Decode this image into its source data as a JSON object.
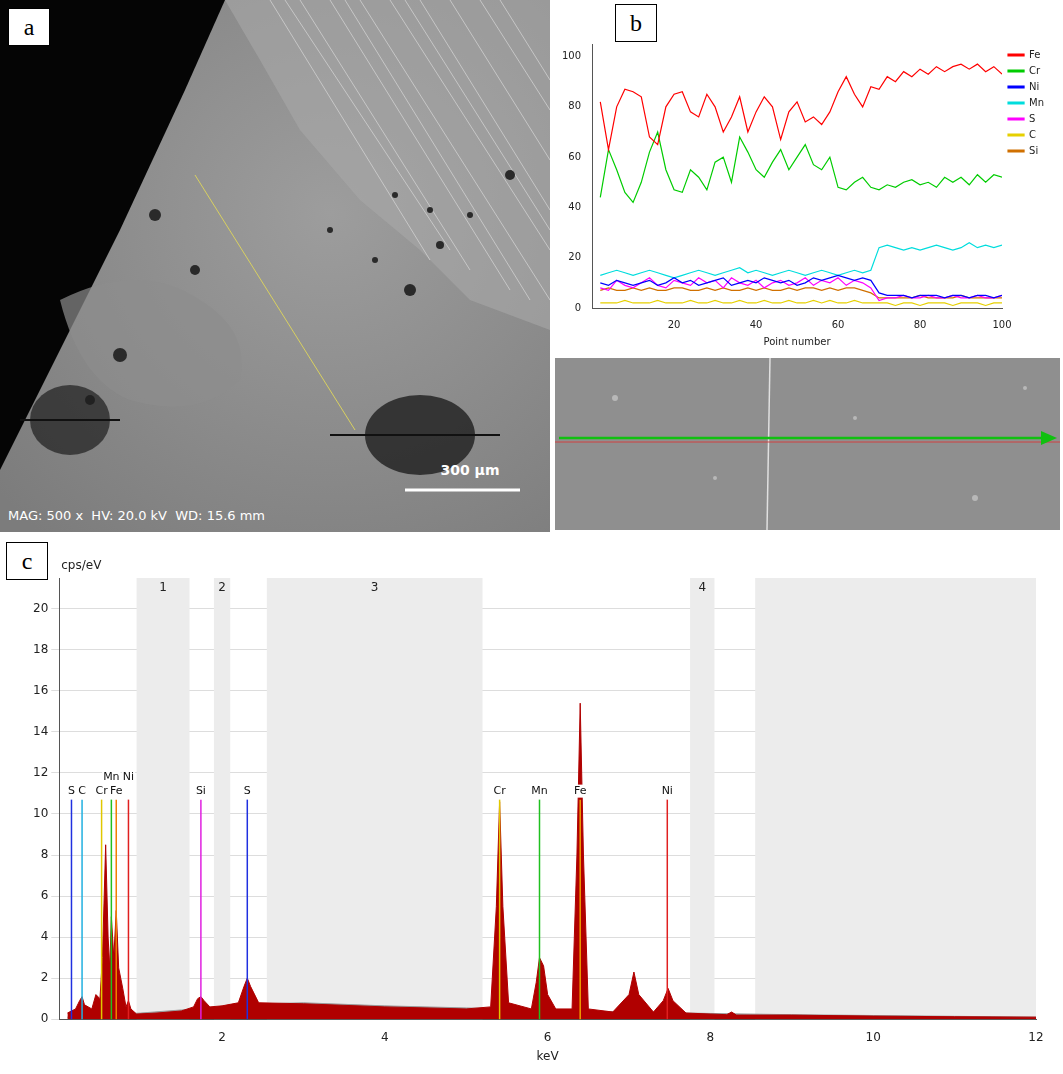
{
  "image_panel": {
    "panel_label": "a",
    "caption": "MAG: 500 x  HV: 20.0 kV  WD: 15.6 mm",
    "scale_bar_label": "300 µm"
  },
  "chart_data": [
    {
      "panel_label": "b",
      "type": "line",
      "x_label": "Point number",
      "x": [
        2,
        4,
        6,
        8,
        10,
        12,
        14,
        16,
        18,
        20,
        22,
        24,
        26,
        28,
        30,
        32,
        34,
        36,
        38,
        40,
        42,
        44,
        46,
        48,
        50,
        52,
        54,
        56,
        58,
        60,
        62,
        64,
        66,
        68,
        70,
        72,
        74,
        76,
        78,
        80,
        82,
        84,
        86,
        88,
        90,
        92,
        94,
        96,
        98,
        100
      ],
      "series": [
        {
          "name": "Fe",
          "color": "#ff0000",
          "values": [
            82,
            63,
            80,
            87,
            86,
            84,
            68,
            65,
            80,
            85,
            86,
            78,
            76,
            85,
            80,
            70,
            76,
            84,
            70,
            78,
            84,
            80,
            67,
            78,
            82,
            74,
            76,
            73,
            78,
            86,
            92,
            85,
            80,
            88,
            87,
            92,
            90,
            94,
            92,
            95,
            93,
            96,
            94,
            96,
            97,
            95,
            97,
            94,
            96,
            93
          ]
        },
        {
          "name": "Cr",
          "color": "#00cc00",
          "values": [
            44,
            63,
            55,
            46,
            42,
            50,
            62,
            70,
            55,
            47,
            46,
            55,
            52,
            47,
            58,
            60,
            50,
            68,
            62,
            55,
            52,
            58,
            63,
            55,
            60,
            65,
            57,
            55,
            60,
            48,
            47,
            50,
            52,
            48,
            47,
            49,
            48,
            50,
            51,
            49,
            50,
            48,
            52,
            50,
            52,
            49,
            53,
            50,
            53,
            52
          ]
        },
        {
          "name": "Ni",
          "color": "#0000ff",
          "values": [
            10,
            9,
            11,
            10,
            9,
            10,
            11,
            9,
            10,
            12,
            10,
            11,
            9,
            10,
            11,
            12,
            9,
            10,
            11,
            10,
            12,
            11,
            10,
            11,
            9,
            10,
            12,
            11,
            12,
            13,
            12,
            11,
            12,
            11,
            6,
            5,
            5,
            5,
            4,
            5,
            5,
            5,
            4,
            5,
            5,
            4,
            5,
            5,
            4,
            5
          ]
        },
        {
          "name": "Mn",
          "color": "#00dddd",
          "values": [
            13,
            14,
            15,
            14,
            13,
            14,
            15,
            14,
            13,
            12,
            13,
            14,
            15,
            14,
            13,
            14,
            15,
            16,
            14,
            15,
            14,
            13,
            14,
            15,
            14,
            13,
            14,
            15,
            14,
            13,
            14,
            15,
            14,
            15,
            24,
            25,
            24,
            23,
            24,
            23,
            24,
            25,
            24,
            23,
            24,
            26,
            24,
            25,
            24,
            25
          ]
        },
        {
          "name": "S",
          "color": "#ff00ff",
          "values": [
            8,
            7,
            11,
            9,
            8,
            10,
            12,
            9,
            8,
            11,
            10,
            9,
            12,
            10,
            11,
            8,
            12,
            10,
            9,
            11,
            8,
            10,
            11,
            9,
            10,
            12,
            9,
            11,
            10,
            12,
            9,
            11,
            10,
            8,
            3,
            4,
            4,
            5,
            4,
            4,
            5,
            4,
            4,
            5,
            4,
            4,
            5,
            4,
            4,
            5
          ]
        },
        {
          "name": "C",
          "color": "#e6d000",
          "values": [
            2,
            2,
            2,
            3,
            2,
            2,
            2,
            3,
            2,
            2,
            2,
            3,
            2,
            2,
            3,
            2,
            2,
            3,
            2,
            2,
            3,
            2,
            2,
            3,
            2,
            2,
            3,
            2,
            3,
            2,
            2,
            3,
            2,
            2,
            2,
            2,
            1,
            2,
            2,
            1,
            2,
            2,
            2,
            1,
            2,
            2,
            2,
            1,
            2,
            2
          ]
        },
        {
          "name": "Si",
          "color": "#d07000",
          "values": [
            7,
            8,
            7,
            7,
            8,
            7,
            8,
            7,
            7,
            8,
            8,
            7,
            7,
            8,
            7,
            8,
            7,
            7,
            8,
            7,
            8,
            7,
            7,
            8,
            7,
            8,
            8,
            7,
            8,
            7,
            8,
            8,
            7,
            6,
            4,
            4,
            4,
            4,
            4,
            5,
            4,
            4,
            4,
            4,
            5,
            4,
            4,
            4,
            4,
            4
          ]
        }
      ],
      "xlim": [
        0,
        100
      ],
      "xticks": [
        20,
        40,
        60,
        80,
        100
      ],
      "ylim": [
        0,
        105
      ],
      "yticks": [
        0,
        20,
        40,
        60,
        80,
        100
      ],
      "grid": false,
      "legend": "right"
    },
    {
      "panel_label": "c",
      "type": "area",
      "x_label": "keV",
      "y_label": "cps/eV",
      "series": [
        {
          "color": "#b00000",
          "x": [
            0.1,
            0.2,
            0.25,
            0.28,
            0.31,
            0.4,
            0.45,
            0.5,
            0.53,
            0.57,
            0.6,
            0.62,
            0.64,
            0.67,
            0.7,
            0.73,
            0.78,
            0.82,
            0.85,
            0.88,
            0.95,
            1.2,
            1.5,
            1.65,
            1.7,
            1.74,
            1.78,
            1.85,
            2.0,
            2.2,
            2.27,
            2.31,
            2.35,
            2.45,
            3.0,
            4.0,
            5.0,
            5.3,
            5.37,
            5.41,
            5.45,
            5.52,
            5.8,
            5.86,
            5.9,
            5.95,
            6.0,
            6.1,
            6.3,
            6.36,
            6.4,
            6.44,
            6.5,
            6.8,
            7.0,
            7.06,
            7.12,
            7.3,
            7.42,
            7.48,
            7.54,
            7.7,
            8.2,
            8.26,
            8.32,
            9,
            10,
            11,
            12
          ],
          "values": [
            0.3,
            0.5,
            0.9,
            1.1,
            0.7,
            0.5,
            1.2,
            1.0,
            3,
            8.5,
            4,
            2.5,
            5,
            3,
            5.3,
            2.5,
            1.5,
            0.6,
            0.9,
            0.5,
            0.25,
            0.3,
            0.4,
            0.6,
            1.0,
            1.1,
            0.9,
            0.6,
            0.65,
            0.8,
            1.6,
            2.0,
            1.6,
            0.8,
            0.75,
            0.6,
            0.5,
            0.6,
            5.5,
            10.6,
            5.5,
            0.8,
            0.5,
            1.8,
            3.0,
            2.6,
            1.2,
            0.5,
            0.5,
            8,
            15.4,
            8,
            0.5,
            0.35,
            1.2,
            2.3,
            1.2,
            0.35,
            0.9,
            1.5,
            0.9,
            0.3,
            0.22,
            0.35,
            0.2,
            0.2,
            0.15,
            0.12,
            0.1
          ]
        },
        {
          "color": "#9a9a9a",
          "x": [
            0.1,
            0.5,
            1,
            1.5,
            2,
            2.5,
            3,
            4,
            5,
            6,
            7,
            8,
            9,
            10,
            11,
            12
          ],
          "values": [
            0.1,
            0.2,
            0.3,
            0.45,
            0.6,
            0.75,
            0.8,
            0.65,
            0.55,
            0.45,
            0.35,
            0.28,
            0.22,
            0.18,
            0.14,
            0.1
          ]
        }
      ],
      "xlim": [
        0,
        12
      ],
      "xticks": [
        2,
        4,
        6,
        8,
        10,
        12
      ],
      "ylim": [
        0,
        21.5
      ],
      "yticks": [
        0,
        2,
        4,
        6,
        8,
        10,
        12,
        14,
        16,
        18,
        20
      ],
      "grid": "y",
      "regions": [
        {
          "label": "1",
          "range": [
            0.95,
            1.6
          ]
        },
        {
          "label": "2",
          "range": [
            1.9,
            2.1
          ]
        },
        {
          "label": "3",
          "range": [
            2.55,
            5.2
          ]
        },
        {
          "label": "4",
          "range": [
            7.75,
            8.05
          ]
        },
        {
          "range": [
            8.55,
            12
          ]
        }
      ],
      "element_lines": [
        {
          "label": "S",
          "x": 0.15,
          "y": 10.7,
          "color": "#2030e0"
        },
        {
          "label": "C",
          "x": 0.28,
          "y": 10.7,
          "color": "#20b0e0"
        },
        {
          "label": "Cr",
          "x": 0.52,
          "y": 10.7,
          "color": "#e0c800"
        },
        {
          "label": "Mn",
          "x": 0.64,
          "y": 10.7,
          "color": "#20c020"
        },
        {
          "label": "Fe",
          "x": 0.7,
          "y": 10.7,
          "color": "#f08000"
        },
        {
          "label": "Ni",
          "x": 0.85,
          "y": 10.7,
          "color": "#e02020"
        },
        {
          "label": "Si",
          "x": 1.74,
          "y": 10.7,
          "color": "#e020e0"
        },
        {
          "label": "S",
          "x": 2.31,
          "y": 10.7,
          "color": "#2030e0"
        },
        {
          "label": "Cr",
          "x": 5.41,
          "y": 10.7,
          "color": "#e0c800"
        },
        {
          "label": "Mn",
          "x": 5.9,
          "y": 10.7,
          "color": "#20c020"
        },
        {
          "label": "Fe",
          "x": 6.4,
          "y": 10.7,
          "color": "#f0a000"
        },
        {
          "label": "Ni",
          "x": 7.47,
          "y": 10.7,
          "color": "#e02020"
        }
      ]
    }
  ]
}
